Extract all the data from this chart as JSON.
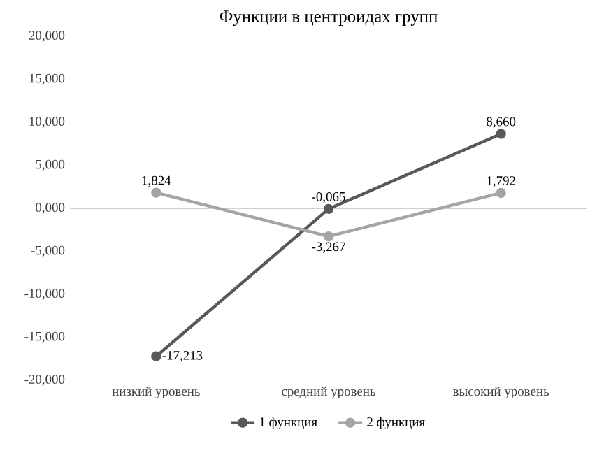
{
  "chart_data": {
    "type": "line",
    "title": "Функции в центроидах групп",
    "categories": [
      "низкий уровень",
      "средний уровень",
      "высокий уровень"
    ],
    "series": [
      {
        "name": "1 функция",
        "color": "#595959",
        "values": [
          -17.213,
          -0.065,
          8.66
        ],
        "value_labels": [
          "-17,213",
          "-0,065",
          "8,660"
        ]
      },
      {
        "name": "2 функция",
        "color": "#a5a5a5",
        "values": [
          1.824,
          -3.267,
          1.792
        ],
        "value_labels": [
          "1,824",
          "-3,267",
          "1,792"
        ]
      }
    ],
    "ylim": [
      -20,
      20
    ],
    "yticks": [
      {
        "value": -20,
        "label": "-20,000"
      },
      {
        "value": -15,
        "label": "-15,000"
      },
      {
        "value": -10,
        "label": "-10,000"
      },
      {
        "value": -5,
        "label": "-5,000"
      },
      {
        "value": 0,
        "label": "0,000"
      },
      {
        "value": 5,
        "label": "5,000"
      },
      {
        "value": 10,
        "label": "10,000"
      },
      {
        "value": 15,
        "label": "15,000"
      },
      {
        "value": 20,
        "label": "20,000"
      }
    ],
    "marker": "circle",
    "line_style": "solid",
    "legend": "bottom"
  }
}
